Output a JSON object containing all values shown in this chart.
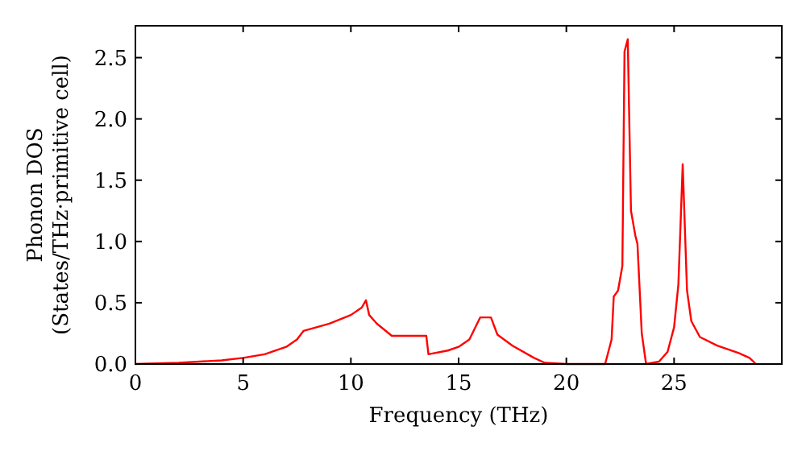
{
  "chart_data": {
    "type": "line",
    "xlabel": "Frequency (THz)",
    "ylabel": "Phonon DOS\n(States/THz·primitive cell)",
    "x": [
      0,
      2,
      4,
      5,
      6,
      7,
      7.5,
      7.8,
      8,
      9,
      10,
      10.5,
      10.7,
      10.85,
      11.2,
      11.9,
      13.5,
      13.6,
      14.5,
      15,
      15.5,
      16,
      16.5,
      16.8,
      17.5,
      18.5,
      19,
      20,
      21.8,
      22.1,
      22.2,
      22.4,
      22.6,
      22.7,
      22.85,
      23.0,
      23.2,
      23.3,
      23.5,
      23.7,
      24.3,
      24.7,
      25.0,
      25.2,
      25.4,
      25.6,
      25.8,
      26.2,
      27,
      28,
      28.5,
      28.8
    ],
    "series": [
      {
        "color": "#ff0000",
        "values": [
          0,
          0.01,
          0.03,
          0.05,
          0.08,
          0.14,
          0.2,
          0.27,
          0.28,
          0.33,
          0.4,
          0.46,
          0.52,
          0.4,
          0.33,
          0.23,
          0.23,
          0.08,
          0.11,
          0.14,
          0.2,
          0.38,
          0.38,
          0.24,
          0.15,
          0.05,
          0.01,
          0,
          0,
          0.2,
          0.55,
          0.6,
          0.8,
          2.55,
          2.65,
          1.25,
          1.05,
          0.98,
          0.25,
          0,
          0.02,
          0.1,
          0.3,
          0.65,
          1.63,
          0.6,
          0.35,
          0.22,
          0.15,
          0.09,
          0.05,
          0
        ]
      }
    ],
    "xlim": [
      0,
      30
    ],
    "xticks": [
      0,
      5,
      10,
      15,
      20,
      25
    ],
    "ylim": [
      0,
      2.76
    ],
    "yticks": [
      {
        "value": 0,
        "label": "0.0"
      },
      {
        "value": 0.5,
        "label": "0.5"
      },
      {
        "value": 1,
        "label": "1.0"
      },
      {
        "value": 1.5,
        "label": "1.5"
      },
      {
        "value": 2,
        "label": "2.0"
      },
      {
        "value": 2.5,
        "label": "2.5"
      }
    ],
    "grid": false,
    "marker": "none",
    "line_style": "solid"
  }
}
